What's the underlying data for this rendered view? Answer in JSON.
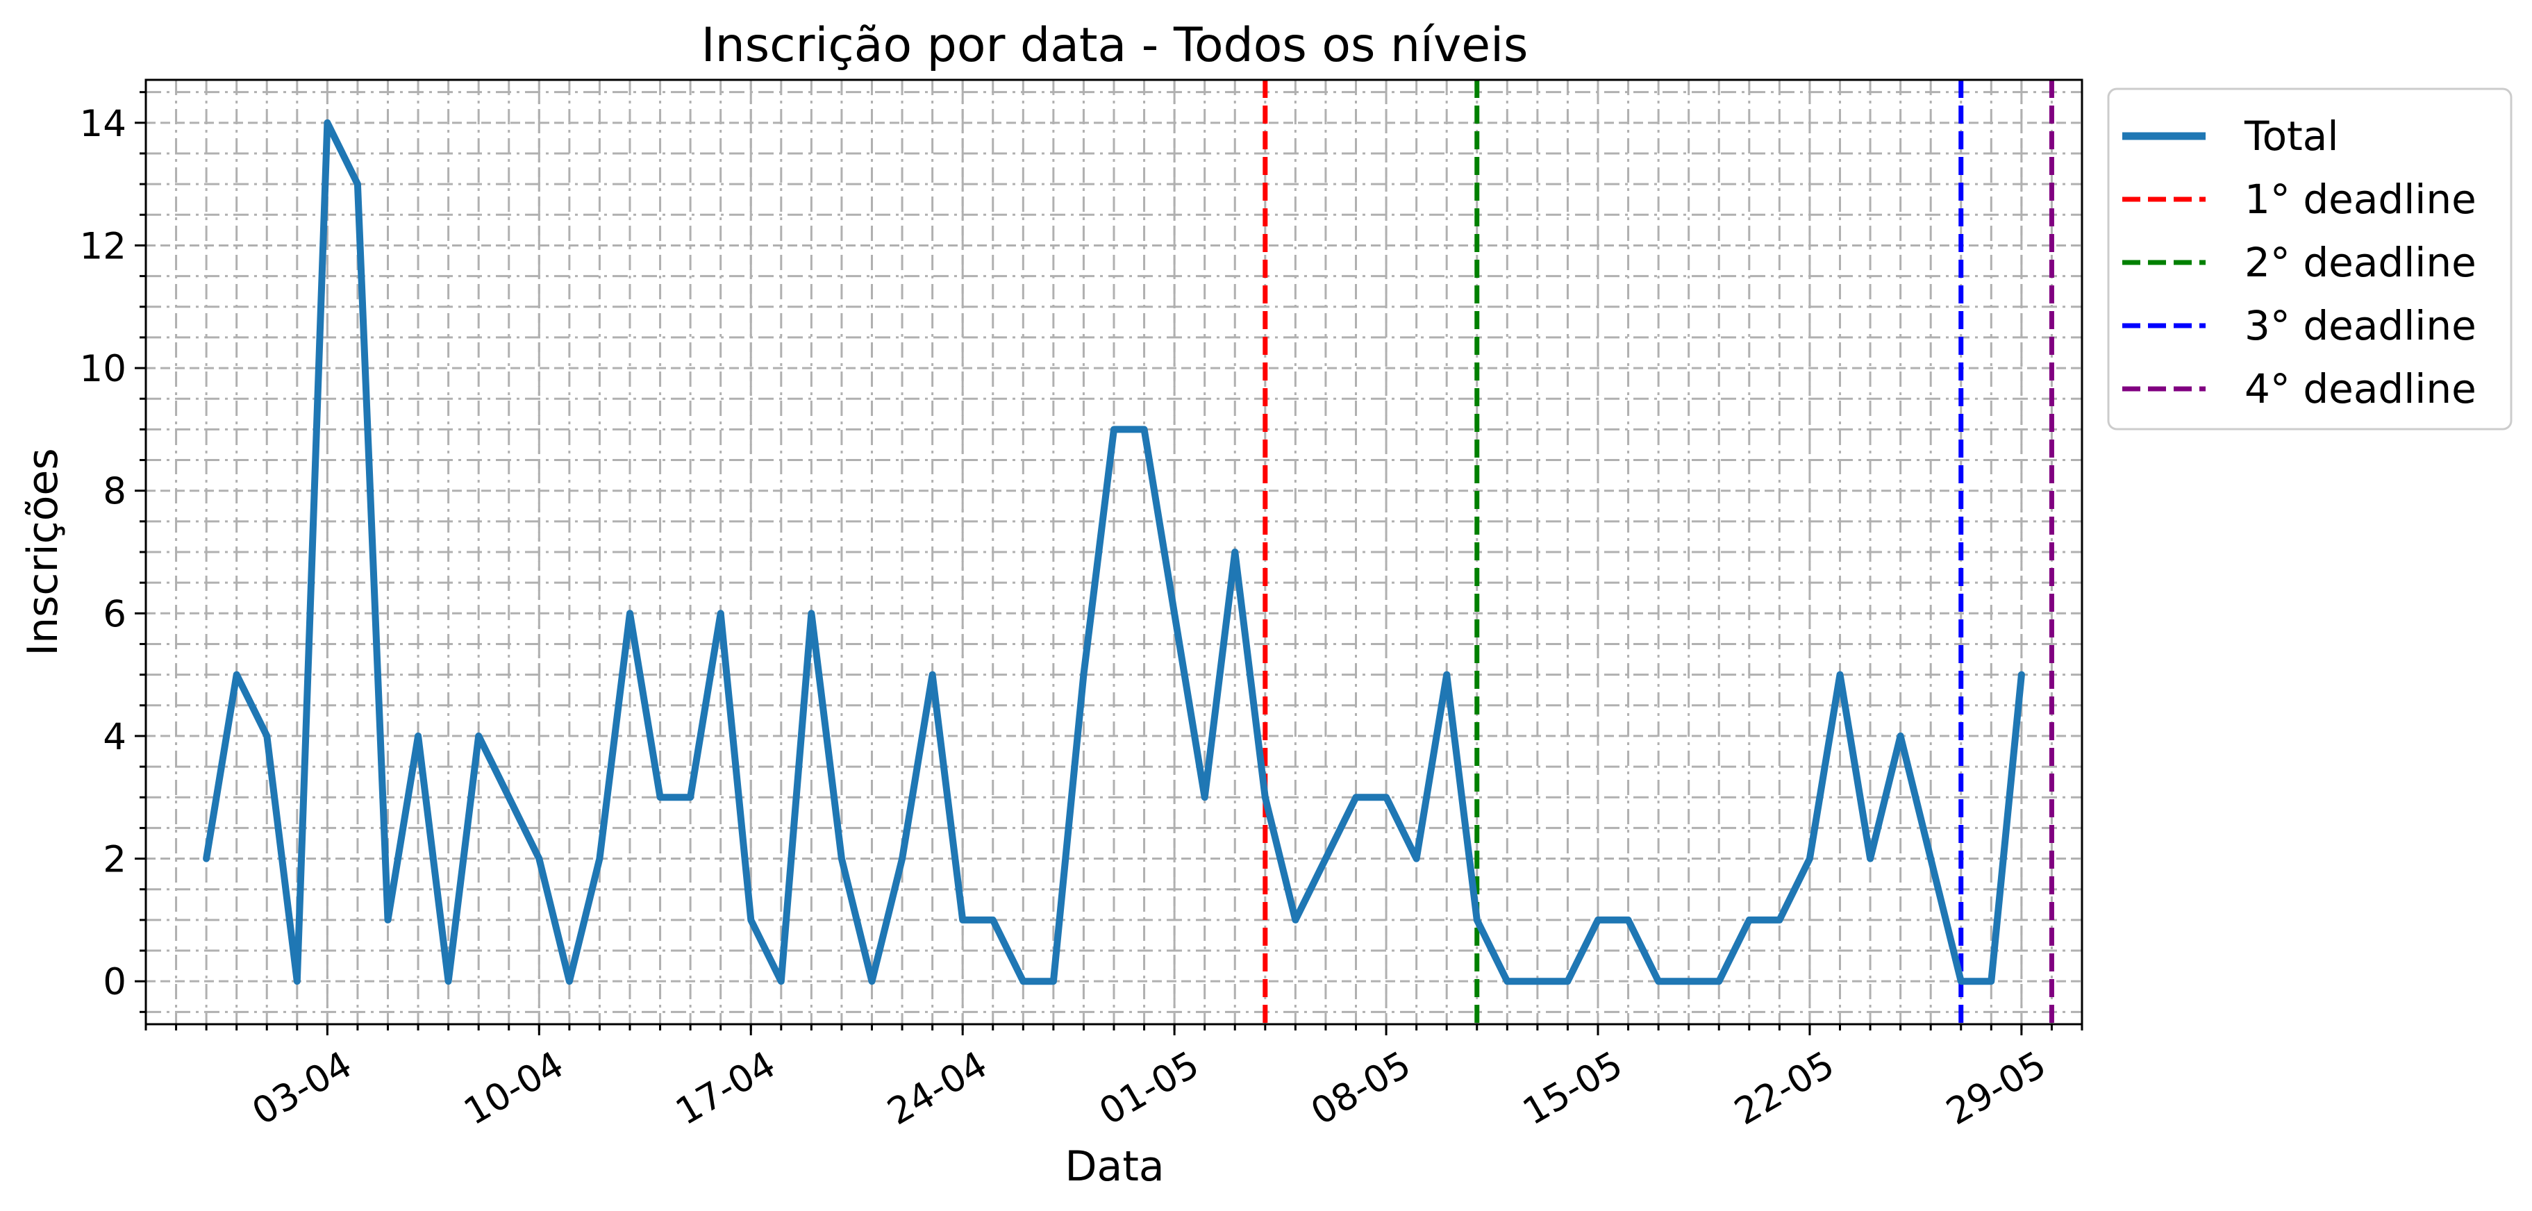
{
  "chart_data": {
    "type": "line",
    "title": "Inscrição por data - Todos os níveis",
    "xlabel": "Data",
    "ylabel": "Inscrições",
    "x_start": "2019-03-30",
    "x_end": "2019-05-30",
    "xlim": [
      "2019-03-28",
      "2019-05-31"
    ],
    "ylim": [
      -0.7,
      14.7
    ],
    "yticks": [
      0,
      2,
      4,
      6,
      8,
      10,
      12,
      14
    ],
    "xticks": [
      {
        "date": "2019-04-03",
        "label": "03-04"
      },
      {
        "date": "2019-04-10",
        "label": "10-04"
      },
      {
        "date": "2019-04-17",
        "label": "17-04"
      },
      {
        "date": "2019-04-24",
        "label": "24-04"
      },
      {
        "date": "2019-05-01",
        "label": "01-05"
      },
      {
        "date": "2019-05-08",
        "label": "08-05"
      },
      {
        "date": "2019-05-15",
        "label": "15-05"
      },
      {
        "date": "2019-05-22",
        "label": "22-05"
      },
      {
        "date": "2019-05-29",
        "label": "29-05"
      }
    ],
    "grid": true,
    "legend_position": "outside-top-right",
    "series": [
      {
        "name": "Total",
        "color": "#1f77b4",
        "values": [
          2,
          5,
          4,
          0,
          14,
          13,
          1,
          4,
          0,
          4,
          3,
          2,
          0,
          2,
          6,
          3,
          3,
          6,
          1,
          0,
          6,
          2,
          0,
          2,
          5,
          1,
          1,
          0,
          0,
          5,
          9,
          9,
          6,
          3,
          7,
          3,
          1,
          2,
          3,
          3,
          2,
          5,
          1,
          0,
          0,
          0,
          1,
          1,
          0,
          0,
          0,
          1,
          1,
          2,
          5,
          2,
          4,
          2,
          0,
          0,
          5
        ]
      }
    ],
    "deadlines": [
      {
        "label": "1° deadline",
        "date": "2019-05-04",
        "color": "#ff0000"
      },
      {
        "label": "2° deadline",
        "date": "2019-05-11",
        "color": "#008000"
      },
      {
        "label": "3° deadline",
        "date": "2019-05-27",
        "color": "#0000ff"
      },
      {
        "label": "4° deadline",
        "date": "2019-05-30",
        "color": "#800080"
      }
    ]
  }
}
